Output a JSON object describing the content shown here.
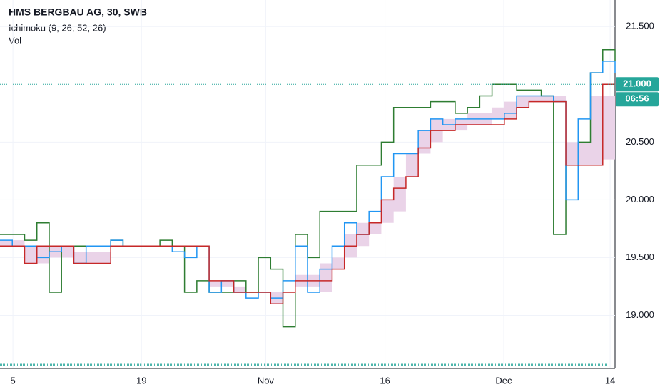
{
  "chart_data": {
    "type": "line",
    "title": "HMS BERGBAU AG, 30, SWB",
    "indicators": [
      "Ichimoku (9, 26, 52, 26)",
      "Vol"
    ],
    "x": [
      0,
      2,
      4,
      6,
      8,
      10,
      12,
      14,
      16,
      18,
      20,
      22,
      24,
      26,
      28,
      30,
      32,
      34,
      36,
      38,
      40,
      42,
      44,
      46,
      48,
      50,
      52,
      54,
      56,
      58,
      60,
      62,
      64,
      66,
      68,
      70,
      72,
      74,
      76,
      78,
      80,
      82,
      84,
      86,
      88,
      90,
      92,
      94,
      96,
      98,
      100
    ],
    "xlim": [
      0,
      100
    ],
    "xticks": [
      {
        "value": 2.1,
        "label": "5"
      },
      {
        "value": 23,
        "label": "19"
      },
      {
        "value": 43.2,
        "label": "Nov"
      },
      {
        "value": 62.6,
        "label": "16"
      },
      {
        "value": 81.9,
        "label": "Dec"
      },
      {
        "value": 99.2,
        "label": "14"
      }
    ],
    "ylim": [
      18.54,
      21.73
    ],
    "yticks": [
      {
        "value": 19,
        "label": "19.000"
      },
      {
        "value": 19.5,
        "label": "19.500"
      },
      {
        "value": 20,
        "label": "20.000"
      },
      {
        "value": 20.5,
        "label": "20.500"
      },
      {
        "value": 21.5,
        "label": "21.500"
      }
    ],
    "grid": true,
    "cloud": {
      "color": "#ead3e8",
      "upper": [
        19.65,
        19.65,
        19.6,
        19.6,
        19.6,
        19.6,
        19.55,
        19.55,
        19.55,
        19.6,
        19.6,
        19.6,
        19.6,
        19.6,
        19.6,
        19.6,
        19.6,
        19.3,
        19.3,
        19.25,
        19.2,
        19.2,
        19.2,
        19.2,
        19.35,
        19.35,
        19.45,
        19.5,
        19.7,
        19.8,
        19.8,
        20.0,
        20.2,
        20.4,
        20.6,
        20.7,
        20.7,
        20.7,
        20.75,
        20.75,
        20.8,
        20.85,
        20.9,
        20.9,
        20.9,
        20.9,
        20.5,
        20.5,
        20.9,
        20.9,
        20.9
      ],
      "lower": [
        19.6,
        19.6,
        19.45,
        19.45,
        19.5,
        19.5,
        19.45,
        19.45,
        19.45,
        19.6,
        19.6,
        19.6,
        19.6,
        19.6,
        19.6,
        19.6,
        19.6,
        19.25,
        19.25,
        19.2,
        19.2,
        19.2,
        19.1,
        19.2,
        19.25,
        19.25,
        19.2,
        19.4,
        19.5,
        19.6,
        19.7,
        19.8,
        19.9,
        20.2,
        20.4,
        20.5,
        20.6,
        20.6,
        20.65,
        20.65,
        20.7,
        20.7,
        20.8,
        20.85,
        20.85,
        20.85,
        20.3,
        20.3,
        20.3,
        20.35,
        20.45
      ]
    },
    "series": [
      {
        "color": "#2e7d32",
        "values": [
          19.7,
          19.7,
          19.65,
          19.8,
          19.2,
          19.6,
          19.6,
          19.6,
          19.6,
          19.65,
          19.6,
          19.6,
          19.6,
          19.65,
          19.6,
          19.2,
          19.3,
          19.2,
          19.2,
          19.3,
          19.2,
          19.5,
          19.4,
          18.9,
          19.7,
          19.5,
          19.9,
          19.9,
          19.9,
          20.3,
          20.3,
          20.5,
          20.8,
          20.8,
          20.8,
          20.85,
          20.85,
          20.75,
          20.8,
          20.9,
          21.0,
          21.0,
          20.95,
          20.95,
          20.9,
          19.7,
          20.3,
          20.5,
          21.1,
          21.3,
          21.2
        ]
      },
      {
        "color": "#2196f3",
        "values": [
          19.65,
          19.6,
          19.6,
          19.5,
          19.55,
          19.6,
          19.45,
          19.6,
          19.6,
          19.65,
          19.6,
          19.6,
          19.6,
          19.6,
          19.55,
          19.5,
          19.6,
          19.2,
          19.3,
          19.2,
          19.15,
          19.2,
          19.15,
          19.3,
          19.6,
          19.2,
          19.4,
          19.6,
          19.8,
          19.7,
          19.9,
          20.2,
          20.4,
          20.4,
          20.6,
          20.7,
          20.65,
          20.7,
          20.7,
          20.7,
          20.7,
          20.75,
          20.9,
          20.9,
          20.9,
          20.85,
          20.0,
          20.7,
          21.1,
          21.2,
          21.1
        ]
      },
      {
        "color": "#c62828",
        "values": [
          19.6,
          19.6,
          19.45,
          19.6,
          19.6,
          19.6,
          19.45,
          19.45,
          19.45,
          19.6,
          19.6,
          19.6,
          19.6,
          19.6,
          19.6,
          19.6,
          19.6,
          19.3,
          19.3,
          19.2,
          19.2,
          19.2,
          19.1,
          19.2,
          19.3,
          19.3,
          19.3,
          19.4,
          19.6,
          19.7,
          19.8,
          20.0,
          20.1,
          20.2,
          20.45,
          20.6,
          20.6,
          20.65,
          20.65,
          20.65,
          20.65,
          20.7,
          20.8,
          20.85,
          20.85,
          20.85,
          20.3,
          20.3,
          20.3,
          21.0,
          21.0
        ]
      }
    ],
    "last_price": {
      "value": 21.0,
      "label": "21.000",
      "color": "#26a69a"
    },
    "countdown": "06:56"
  }
}
